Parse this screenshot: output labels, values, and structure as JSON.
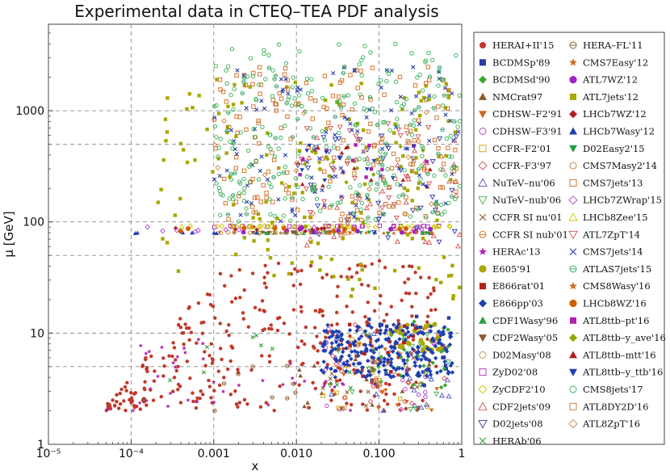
{
  "chart_data": {
    "type": "scatter",
    "title": "Experimental data in CTEQ–TEA PDF analysis",
    "xlabel": "x",
    "ylabel": "μ [GeV]",
    "x_scale": "log",
    "y_scale": "log",
    "xlim": [
      1e-05,
      1
    ],
    "ylim": [
      1,
      6000
    ],
    "grid": true,
    "x_gridlines": [
      0.0001,
      0.001,
      0.01,
      0.1
    ],
    "y_gridlines": [
      5,
      10,
      50,
      100,
      500,
      1000
    ],
    "x_ticks": [
      {
        "value": 1e-05,
        "label": "10⁻⁵"
      },
      {
        "value": 0.0001,
        "label": "10⁻⁴"
      },
      {
        "value": 0.001,
        "label": "0.001"
      },
      {
        "value": 0.01,
        "label": "0.010"
      },
      {
        "value": 0.1,
        "label": "0.100"
      },
      {
        "value": 1,
        "label": "1"
      }
    ],
    "y_ticks": [
      {
        "value": 1,
        "label": "1"
      },
      {
        "value": 10,
        "label": "10"
      },
      {
        "value": 100,
        "label": "100"
      },
      {
        "value": 1000,
        "label": "1000"
      }
    ],
    "legend_position": "right",
    "series": [
      {
        "name": "HERAI+II'15",
        "color": "#c0392b",
        "marker": "circle-filled",
        "region": {
          "x": [
            5e-05,
            0.5
          ],
          "mu": [
            2,
            45
          ],
          "n": 340
        }
      },
      {
        "name": "BCDMSp'89",
        "color": "#2c3aa8",
        "marker": "square-filled",
        "region": {
          "x": [
            0.07,
            0.75
          ],
          "mu": [
            3,
            15
          ],
          "n": 30
        }
      },
      {
        "name": "BCDMSd'90",
        "color": "#3aa835",
        "marker": "diamond-filled",
        "region": {
          "x": [
            0.07,
            0.75
          ],
          "mu": [
            3,
            15
          ],
          "n": 30
        }
      },
      {
        "name": "NMCrat97",
        "color": "#8b5a2b",
        "marker": "triangle-up-filled",
        "region": {
          "x": [
            0.01,
            0.5
          ],
          "mu": [
            2,
            8
          ],
          "n": 20
        }
      },
      {
        "name": "CDHSW–F2'91",
        "color": "#d2691e",
        "marker": "triangle-down-filled",
        "region": {
          "x": [
            0.02,
            0.65
          ],
          "mu": [
            2,
            12
          ],
          "n": 20
        }
      },
      {
        "name": "CDHSW–F3'91",
        "color": "#b03ad0",
        "marker": "circle-open",
        "region": {
          "x": [
            0.02,
            0.65
          ],
          "mu": [
            2,
            12
          ],
          "n": 20
        }
      },
      {
        "name": "CCFR–F2'01",
        "color": "#c8a000",
        "marker": "square-open",
        "region": {
          "x": [
            0.02,
            0.65
          ],
          "mu": [
            2,
            12
          ],
          "n": 20
        }
      },
      {
        "name": "CCFR–F3'97",
        "color": "#d45050",
        "marker": "diamond-open",
        "region": {
          "x": [
            0.02,
            0.65
          ],
          "mu": [
            2,
            12
          ],
          "n": 20
        }
      },
      {
        "name": "NuTeV–nu'06",
        "color": "#4a55c8",
        "marker": "triangle-up-open",
        "region": {
          "x": [
            0.02,
            0.7
          ],
          "mu": [
            2,
            12
          ],
          "n": 20
        }
      },
      {
        "name": "NuTeV–nub'06",
        "color": "#3ab04a",
        "marker": "triangle-down-open",
        "region": {
          "x": [
            0.02,
            0.7
          ],
          "mu": [
            2,
            12
          ],
          "n": 20
        }
      },
      {
        "name": "CCFR SI nu'01",
        "color": "#8b5a2b",
        "marker": "cross",
        "region": {
          "x": [
            0.02,
            0.3
          ],
          "mu": [
            2,
            9
          ],
          "n": 12
        }
      },
      {
        "name": "CCFR SI nub'01",
        "color": "#d2691e",
        "marker": "circle-line-open",
        "region": {
          "x": [
            0.02,
            0.3
          ],
          "mu": [
            2,
            9
          ],
          "n": 12
        }
      },
      {
        "name": "HERAc'13",
        "color": "#b020b0",
        "marker": "star",
        "region": {
          "x": [
            5e-05,
            0.05
          ],
          "mu": [
            2,
            10
          ],
          "n": 40
        }
      },
      {
        "name": "E605'91",
        "color": "#a8a800",
        "marker": "circle-filled-large",
        "region": {
          "x": [
            0.15,
            0.6
          ],
          "mu": [
            7,
            12
          ],
          "n": 25
        }
      },
      {
        "name": "E866rat'01",
        "color": "#b02020",
        "marker": "square-filled",
        "region": {
          "x": [
            0.03,
            0.3
          ],
          "mu": [
            4,
            12
          ],
          "n": 15
        }
      },
      {
        "name": "E866pp'03",
        "color": "#2040b0",
        "marker": "diamond-filled",
        "region": {
          "x": [
            0.02,
            0.8
          ],
          "mu": [
            4,
            12
          ],
          "n": 220
        }
      },
      {
        "name": "CDF1Wasy'96",
        "color": "#20a040",
        "marker": "triangle-up-filled",
        "region": {
          "x": [
            0.003,
            0.03
          ],
          "mu": [
            80,
            80
          ],
          "n": 10
        }
      },
      {
        "name": "CDF2Wasy'05",
        "color": "#8b5a2b",
        "marker": "triangle-down-filled",
        "region": {
          "x": [
            0.003,
            0.05
          ],
          "mu": [
            80,
            80
          ],
          "n": 10
        }
      },
      {
        "name": "D02Masy'08",
        "color": "#c89040",
        "marker": "circle-open",
        "region": {
          "x": [
            0.003,
            0.05
          ],
          "mu": [
            80,
            80
          ],
          "n": 10
        }
      },
      {
        "name": "ZyD02'08",
        "color": "#b020b0",
        "marker": "square-open",
        "region": {
          "x": [
            0.001,
            1
          ],
          "mu": [
            91,
            91
          ],
          "n": 30
        }
      },
      {
        "name": "ZyCDF2'10",
        "color": "#c8c800",
        "marker": "diamond-open",
        "region": {
          "x": [
            0.001,
            1
          ],
          "mu": [
            91,
            91
          ],
          "n": 30
        }
      },
      {
        "name": "CDF2jets'09",
        "color": "#d45050",
        "marker": "triangle-up-open",
        "region": {
          "x": [
            0.01,
            1
          ],
          "mu": [
            60,
            600
          ],
          "n": 40
        }
      },
      {
        "name": "D02jets'08",
        "color": "#2c3aa8",
        "marker": "triangle-down-open",
        "region": {
          "x": [
            0.01,
            1
          ],
          "mu": [
            60,
            600
          ],
          "n": 40
        }
      },
      {
        "name": "HERAb'06",
        "color": "#30a030",
        "marker": "cross",
        "region": {
          "x": [
            0.0002,
            0.05
          ],
          "mu": [
            2,
            10
          ],
          "n": 10
        }
      },
      {
        "name": "HERA–FL'11",
        "color": "#8b5a2b",
        "marker": "circle-line-open",
        "region": {
          "x": [
            3e-05,
            0.01
          ],
          "mu": [
            2,
            6
          ],
          "n": 10
        }
      },
      {
        "name": "CMS7Easy'12",
        "color": "#d2691e",
        "marker": "star",
        "region": {
          "x": [
            0.001,
            0.5
          ],
          "mu": [
            80,
            80
          ],
          "n": 12
        }
      },
      {
        "name": "ATL7WZ'12",
        "color": "#a020c0",
        "marker": "circle-filled-large",
        "region": {
          "x": [
            0.001,
            0.5
          ],
          "mu": [
            80,
            91
          ],
          "n": 12
        }
      },
      {
        "name": "ATL7jets'12",
        "color": "#a8a800",
        "marker": "square-filled",
        "region": {
          "x": [
            0.0002,
            1
          ],
          "mu": [
            20,
            2000
          ],
          "n": 150
        }
      },
      {
        "name": "LHCb7WZ'12",
        "color": "#b02020",
        "marker": "diamond-filled",
        "region": {
          "x": [
            0.0001,
            0.5
          ],
          "mu": [
            80,
            91
          ],
          "n": 10
        }
      },
      {
        "name": "LHCb7Wasy'12",
        "color": "#2040b0",
        "marker": "triangle-up-filled",
        "region": {
          "x": [
            0.0001,
            0.5
          ],
          "mu": [
            80,
            80
          ],
          "n": 10
        }
      },
      {
        "name": "D02Easy2'15",
        "color": "#20a040",
        "marker": "triangle-down-filled",
        "region": {
          "x": [
            0.003,
            0.5
          ],
          "mu": [
            80,
            80
          ],
          "n": 10
        }
      },
      {
        "name": "CMS7Masy2'14",
        "color": "#c07830",
        "marker": "circle-open",
        "region": {
          "x": [
            0.001,
            0.5
          ],
          "mu": [
            80,
            80
          ],
          "n": 10
        }
      },
      {
        "name": "CMS7jets'13",
        "color": "#d2691e",
        "marker": "square-open",
        "region": {
          "x": [
            0.001,
            1
          ],
          "mu": [
            100,
            2500
          ],
          "n": 150
        }
      },
      {
        "name": "LHCb7ZWrap'15",
        "color": "#b040d0",
        "marker": "diamond-open",
        "region": {
          "x": [
            0.0001,
            0.5
          ],
          "mu": [
            80,
            91
          ],
          "n": 10
        }
      },
      {
        "name": "LHCb8Zee'15",
        "color": "#c8c800",
        "marker": "triangle-up-open",
        "region": {
          "x": [
            0.0001,
            0.5
          ],
          "mu": [
            91,
            91
          ],
          "n": 10
        }
      },
      {
        "name": "ATL7ZpT'14",
        "color": "#d45050",
        "marker": "triangle-down-open",
        "region": {
          "x": [
            0.01,
            0.5
          ],
          "mu": [
            90,
            900
          ],
          "n": 30
        }
      },
      {
        "name": "CMS7jets'14",
        "color": "#2c3aa8",
        "marker": "cross",
        "region": {
          "x": [
            0.001,
            1
          ],
          "mu": [
            100,
            2500
          ],
          "n": 100
        }
      },
      {
        "name": "ATLAS7jets'15",
        "color": "#30a060",
        "marker": "circle-line-open",
        "region": {
          "x": [
            0.001,
            1
          ],
          "mu": [
            100,
            2500
          ],
          "n": 60
        }
      },
      {
        "name": "CMS8Wasy'16",
        "color": "#d2691e",
        "marker": "star",
        "region": {
          "x": [
            0.001,
            0.5
          ],
          "mu": [
            80,
            80
          ],
          "n": 10
        }
      },
      {
        "name": "LHCb8WZ'16",
        "color": "#d06000",
        "marker": "circle-filled-large",
        "region": {
          "x": [
            0.0001,
            0.5
          ],
          "mu": [
            80,
            91
          ],
          "n": 10
        }
      },
      {
        "name": "ATL8ttb–pt'16",
        "color": "#b020b0",
        "marker": "square-filled",
        "region": {
          "x": [
            0.01,
            0.5
          ],
          "mu": [
            200,
            500
          ],
          "n": 12
        }
      },
      {
        "name": "ATL8ttb–y_ave'16",
        "color": "#90a800",
        "marker": "diamond-filled",
        "region": {
          "x": [
            0.01,
            0.5
          ],
          "mu": [
            200,
            500
          ],
          "n": 12
        }
      },
      {
        "name": "ATL8ttb–mtt'16",
        "color": "#b02020",
        "marker": "triangle-up-filled",
        "region": {
          "x": [
            0.01,
            0.5
          ],
          "mu": [
            200,
            500
          ],
          "n": 12
        }
      },
      {
        "name": "ATL8ttb–y_ttb'16",
        "color": "#2040b0",
        "marker": "triangle-down-filled",
        "region": {
          "x": [
            0.01,
            0.5
          ],
          "mu": [
            200,
            500
          ],
          "n": 12
        }
      },
      {
        "name": "CMS8jets'17",
        "color": "#30b050",
        "marker": "circle-open",
        "region": {
          "x": [
            0.001,
            1
          ],
          "mu": [
            100,
            4000
          ],
          "n": 220
        }
      },
      {
        "name": "ATL8DY2D'16",
        "color": "#c07830",
        "marker": "square-open",
        "region": {
          "x": [
            0.001,
            0.5
          ],
          "mu": [
            100,
            1000
          ],
          "n": 20
        }
      },
      {
        "name": "ATL8ZpT'16",
        "color": "#d08040",
        "marker": "diamond-open",
        "region": {
          "x": [
            0.001,
            0.5
          ],
          "mu": [
            100,
            1000
          ],
          "n": 20
        }
      }
    ]
  }
}
